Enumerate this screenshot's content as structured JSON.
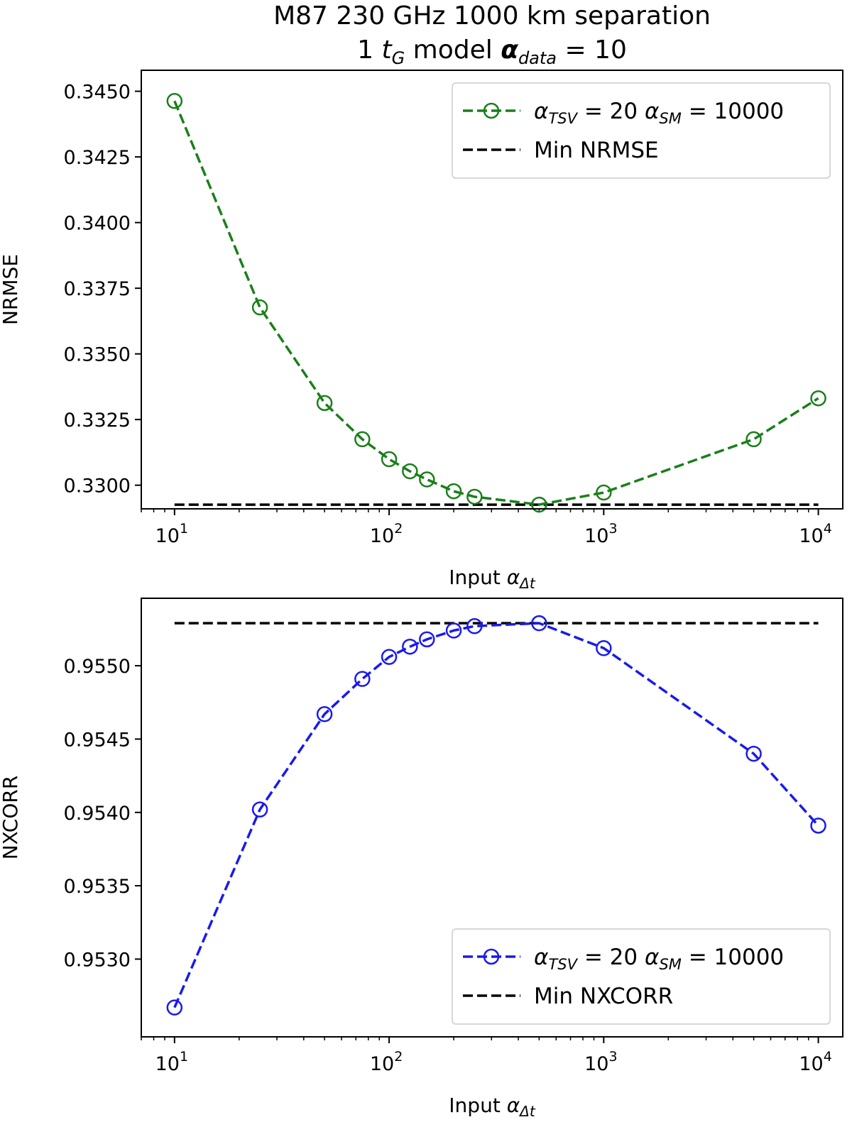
{
  "figure": {
    "title_line1": "M87   230 GHz   1000 km separation",
    "title_line2_prefix": "1 ",
    "title_line2_t": "t",
    "title_line2_t_sub": "G",
    "title_line2_mid": " model     ",
    "title_line2_alpha": "α",
    "title_line2_alpha_sub": "data",
    "title_line2_suffix": " = 10"
  },
  "chart_data": [
    {
      "type": "line",
      "xscale": "log",
      "xlim": [
        7,
        13000
      ],
      "ylim": [
        0.3291,
        0.3458
      ],
      "xlabel_prefix": "Input ",
      "xlabel_alpha": "α",
      "xlabel_sub": "Δt",
      "ylabel": "NRMSE",
      "xticks": [
        10,
        100,
        1000,
        10000
      ],
      "xtick_labels": [
        {
          "base": "10",
          "exp": "1"
        },
        {
          "base": "10",
          "exp": "2"
        },
        {
          "base": "10",
          "exp": "3"
        },
        {
          "base": "10",
          "exp": "4"
        }
      ],
      "yticks": [
        0.33,
        0.3325,
        0.335,
        0.3375,
        0.34,
        0.3425,
        0.345
      ],
      "ytick_labels": [
        "0.3300",
        "0.3325",
        "0.3350",
        "0.3375",
        "0.3400",
        "0.3425",
        "0.3450"
      ],
      "legend_position": "top-right",
      "series": [
        {
          "legend": {
            "alpha": "α",
            "sub1": "TSV",
            "mid": " = 20 ",
            "alpha2": "α",
            "sub2": "SM",
            "tail": " = 10000"
          },
          "color": "#1a7f1a",
          "style": "dashed-circle-markers",
          "x": [
            10,
            25,
            50,
            75,
            100,
            125,
            150,
            200,
            250,
            500,
            1000,
            5000,
            10000
          ],
          "y": [
            0.34463,
            0.33677,
            0.33313,
            0.33175,
            0.33099,
            0.33053,
            0.33022,
            0.32977,
            0.32956,
            0.32926,
            0.32972,
            0.33175,
            0.33331
          ]
        }
      ],
      "reference_line": {
        "label": "Min NRMSE",
        "y": 0.32926,
        "x_range": [
          10,
          10000
        ],
        "color": "#000000"
      }
    },
    {
      "type": "line",
      "xscale": "log",
      "xlim": [
        7,
        13000
      ],
      "ylim": [
        0.95247,
        0.95546
      ],
      "xlabel_prefix": "Input ",
      "xlabel_alpha": "α",
      "xlabel_sub": "Δt",
      "ylabel": "NXCORR",
      "xticks": [
        10,
        100,
        1000,
        10000
      ],
      "xtick_labels": [
        {
          "base": "10",
          "exp": "1"
        },
        {
          "base": "10",
          "exp": "2"
        },
        {
          "base": "10",
          "exp": "3"
        },
        {
          "base": "10",
          "exp": "4"
        }
      ],
      "yticks": [
        0.953,
        0.9535,
        0.954,
        0.9545,
        0.955
      ],
      "ytick_labels": [
        "0.9530",
        "0.9535",
        "0.9540",
        "0.9545",
        "0.9550"
      ],
      "legend_position": "bottom-right",
      "series": [
        {
          "legend": {
            "alpha": "α",
            "sub1": "TSV",
            "mid": " = 20 ",
            "alpha2": "α",
            "sub2": "SM",
            "tail": " = 10000"
          },
          "color": "#1a1aee",
          "style": "dashed-circle-markers",
          "x": [
            10,
            25,
            50,
            75,
            100,
            125,
            150,
            200,
            250,
            500,
            1000,
            5000,
            10000
          ],
          "y": [
            0.95267,
            0.95402,
            0.95467,
            0.95491,
            0.95506,
            0.95513,
            0.95518,
            0.95524,
            0.95527,
            0.95529,
            0.95512,
            0.9544,
            0.95391
          ]
        }
      ],
      "reference_line": {
        "label": "Min NXCORR",
        "y": 0.95529,
        "x_range": [
          10,
          10000
        ],
        "color": "#000000"
      }
    }
  ]
}
